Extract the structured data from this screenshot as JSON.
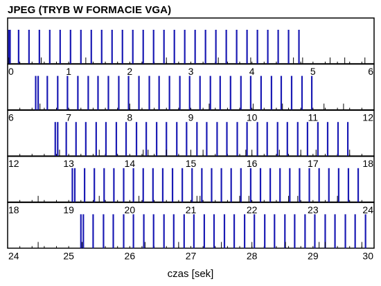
{
  "chart_data": {
    "type": "timeline",
    "title": "JPEG (TRYB W FORMACIE VGA)",
    "xlabel": "czas [sek]",
    "color_frame": "#1a1ab4",
    "color_marker": "#000000",
    "panels": [
      {
        "range": [
          0,
          6
        ],
        "tick_labels": [
          "0",
          "1",
          "2",
          "3",
          "4",
          "5",
          "6"
        ],
        "frames": [
          0.02,
          0.04,
          0.18,
          0.35,
          0.52,
          0.69,
          0.86,
          1.03,
          1.2,
          1.37,
          1.54,
          1.71,
          1.88,
          2.05,
          2.22,
          2.39,
          2.56,
          2.73,
          2.9,
          3.07,
          3.24,
          3.41,
          3.58,
          3.75,
          3.92,
          4.09,
          4.26,
          4.43,
          4.6,
          4.77
        ],
        "markers": [
          0.02,
          0.55,
          1.28,
          2.6,
          3.45,
          3.98,
          4.68,
          4.83,
          5.28,
          5.52,
          5.85
        ]
      },
      {
        "range": [
          6,
          12
        ],
        "tick_labels": [
          "6",
          "7",
          "8",
          "9",
          "10",
          "11",
          "12"
        ],
        "frames": [
          6.46,
          6.5,
          6.65,
          6.82,
          6.98,
          7.15,
          7.32,
          7.48,
          7.65,
          7.82,
          7.98,
          8.15,
          8.32,
          8.48,
          8.65,
          8.82,
          8.98,
          9.15,
          9.32,
          9.48,
          9.65,
          9.82,
          9.98,
          10.15,
          10.32,
          10.48,
          10.65,
          10.82,
          10.98
        ],
        "markers": [
          6.53,
          8.0,
          9.3,
          10.02,
          10.5,
          11.18,
          11.5
        ]
      },
      {
        "range": [
          12,
          18
        ],
        "tick_labels": [
          "12",
          "13",
          "14",
          "15",
          "16",
          "17",
          "18"
        ],
        "frames": [
          12.78,
          12.82,
          12.96,
          13.12,
          13.28,
          13.45,
          13.61,
          13.78,
          13.94,
          14.11,
          14.27,
          14.44,
          14.6,
          14.77,
          14.93,
          15.1,
          15.26,
          15.43,
          15.59,
          15.76,
          15.92,
          16.09,
          16.25,
          16.42,
          16.58,
          16.75,
          16.91,
          17.08,
          17.24,
          17.41,
          17.57
        ],
        "markers": [
          12.85,
          13.5,
          14.22,
          14.3,
          14.6,
          15.0,
          15.2,
          15.9,
          16.0,
          16.45,
          16.8,
          17.05,
          17.6
        ]
      },
      {
        "range": [
          18,
          24
        ],
        "tick_labels": [
          "18",
          "19",
          "20",
          "21",
          "22",
          "23",
          "24"
        ],
        "frames": [
          19.06,
          19.1,
          19.26,
          19.42,
          19.58,
          19.74,
          19.9,
          20.06,
          20.22,
          20.38,
          20.54,
          20.7,
          20.86,
          21.02,
          21.18,
          21.34,
          21.5,
          21.66,
          21.82,
          21.98,
          22.14,
          22.3,
          22.46,
          22.62,
          22.78,
          22.94,
          23.1,
          23.26,
          23.42,
          23.58,
          23.74
        ],
        "markers": [
          18.5,
          19.5,
          20.15,
          21.1,
          21.15,
          21.8,
          21.95,
          22.6,
          22.75,
          23.4
        ]
      },
      {
        "range": [
          24,
          30
        ],
        "tick_labels": [
          "24",
          "25",
          "26",
          "27",
          "28",
          "29",
          "30"
        ],
        "frames": [
          25.2,
          25.24,
          25.4,
          25.57,
          25.73,
          25.9,
          26.06,
          26.23,
          26.39,
          26.56,
          26.72,
          26.89,
          27.05,
          27.22,
          27.38,
          27.55,
          27.71,
          27.88,
          28.04,
          28.21,
          28.37,
          28.54,
          28.7,
          28.87,
          29.03,
          29.2,
          29.36,
          29.53,
          29.69,
          29.86
        ],
        "markers": [
          24.5,
          25.22,
          26.25,
          26.8,
          27.5,
          28.0,
          28.55,
          29.1,
          29.2,
          29.8
        ]
      }
    ]
  }
}
